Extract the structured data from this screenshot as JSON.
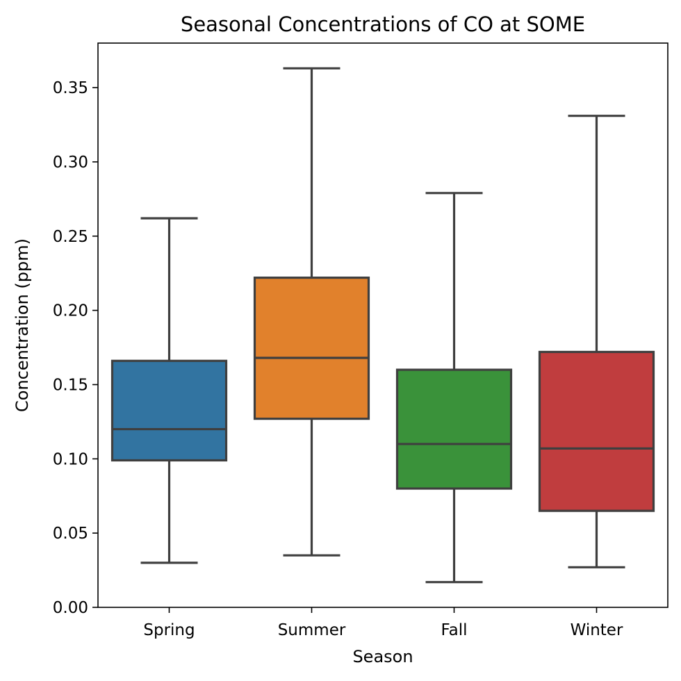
{
  "chart_data": {
    "type": "box",
    "title": "Seasonal Concentrations of CO at SOME",
    "xlabel": "Season",
    "ylabel": "Concentration (ppm)",
    "ylim": [
      0,
      0.38
    ],
    "yticks": [
      {
        "value": 0.0,
        "label": "0.00"
      },
      {
        "value": 0.05,
        "label": "0.05"
      },
      {
        "value": 0.1,
        "label": "0.10"
      },
      {
        "value": 0.15,
        "label": "0.15"
      },
      {
        "value": 0.2,
        "label": "0.20"
      },
      {
        "value": 0.25,
        "label": "0.25"
      },
      {
        "value": 0.3,
        "label": "0.30"
      },
      {
        "value": 0.35,
        "label": "0.35"
      }
    ],
    "categories": [
      "Spring",
      "Summer",
      "Fall",
      "Winter"
    ],
    "boxes": [
      {
        "category": "Spring",
        "whisker_low": 0.03,
        "q1": 0.099,
        "median": 0.12,
        "q3": 0.166,
        "whisker_high": 0.262,
        "color": "#3274a1"
      },
      {
        "category": "Summer",
        "whisker_low": 0.035,
        "q1": 0.127,
        "median": 0.168,
        "q3": 0.222,
        "whisker_high": 0.363,
        "color": "#e1812c"
      },
      {
        "category": "Fall",
        "whisker_low": 0.017,
        "q1": 0.08,
        "median": 0.11,
        "q3": 0.16,
        "whisker_high": 0.279,
        "color": "#3a923a"
      },
      {
        "category": "Winter",
        "whisker_low": 0.027,
        "q1": 0.065,
        "median": 0.107,
        "q3": 0.172,
        "whisker_high": 0.331,
        "color": "#c03d3e"
      }
    ],
    "line_color": "#3f3f3f",
    "grid": false,
    "legend": "none"
  }
}
